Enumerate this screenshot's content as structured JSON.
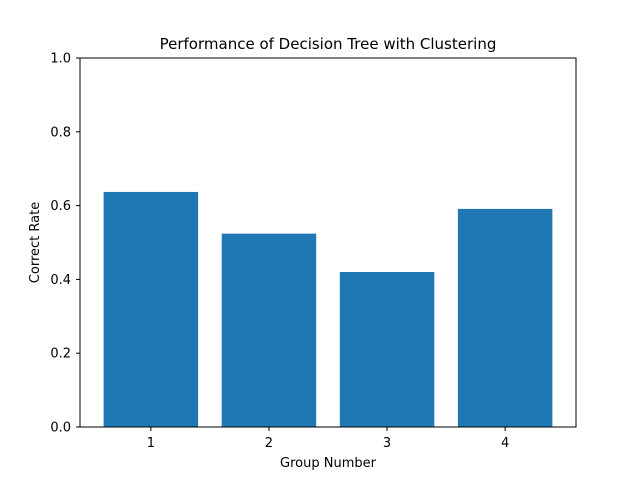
{
  "chart_data": {
    "type": "bar",
    "title": "Performance of Decision Tree with Clustering",
    "xlabel": "Group Number",
    "ylabel": "Correct Rate",
    "categories": [
      "1",
      "2",
      "3",
      "4"
    ],
    "values": [
      0.637,
      0.524,
      0.42,
      0.591
    ],
    "ylim": [
      0,
      1.0
    ],
    "yticks": [
      "0.0",
      "0.2",
      "0.4",
      "0.6",
      "0.8",
      "1.0"
    ],
    "grid": false,
    "bar_color": "#1f77b4"
  }
}
